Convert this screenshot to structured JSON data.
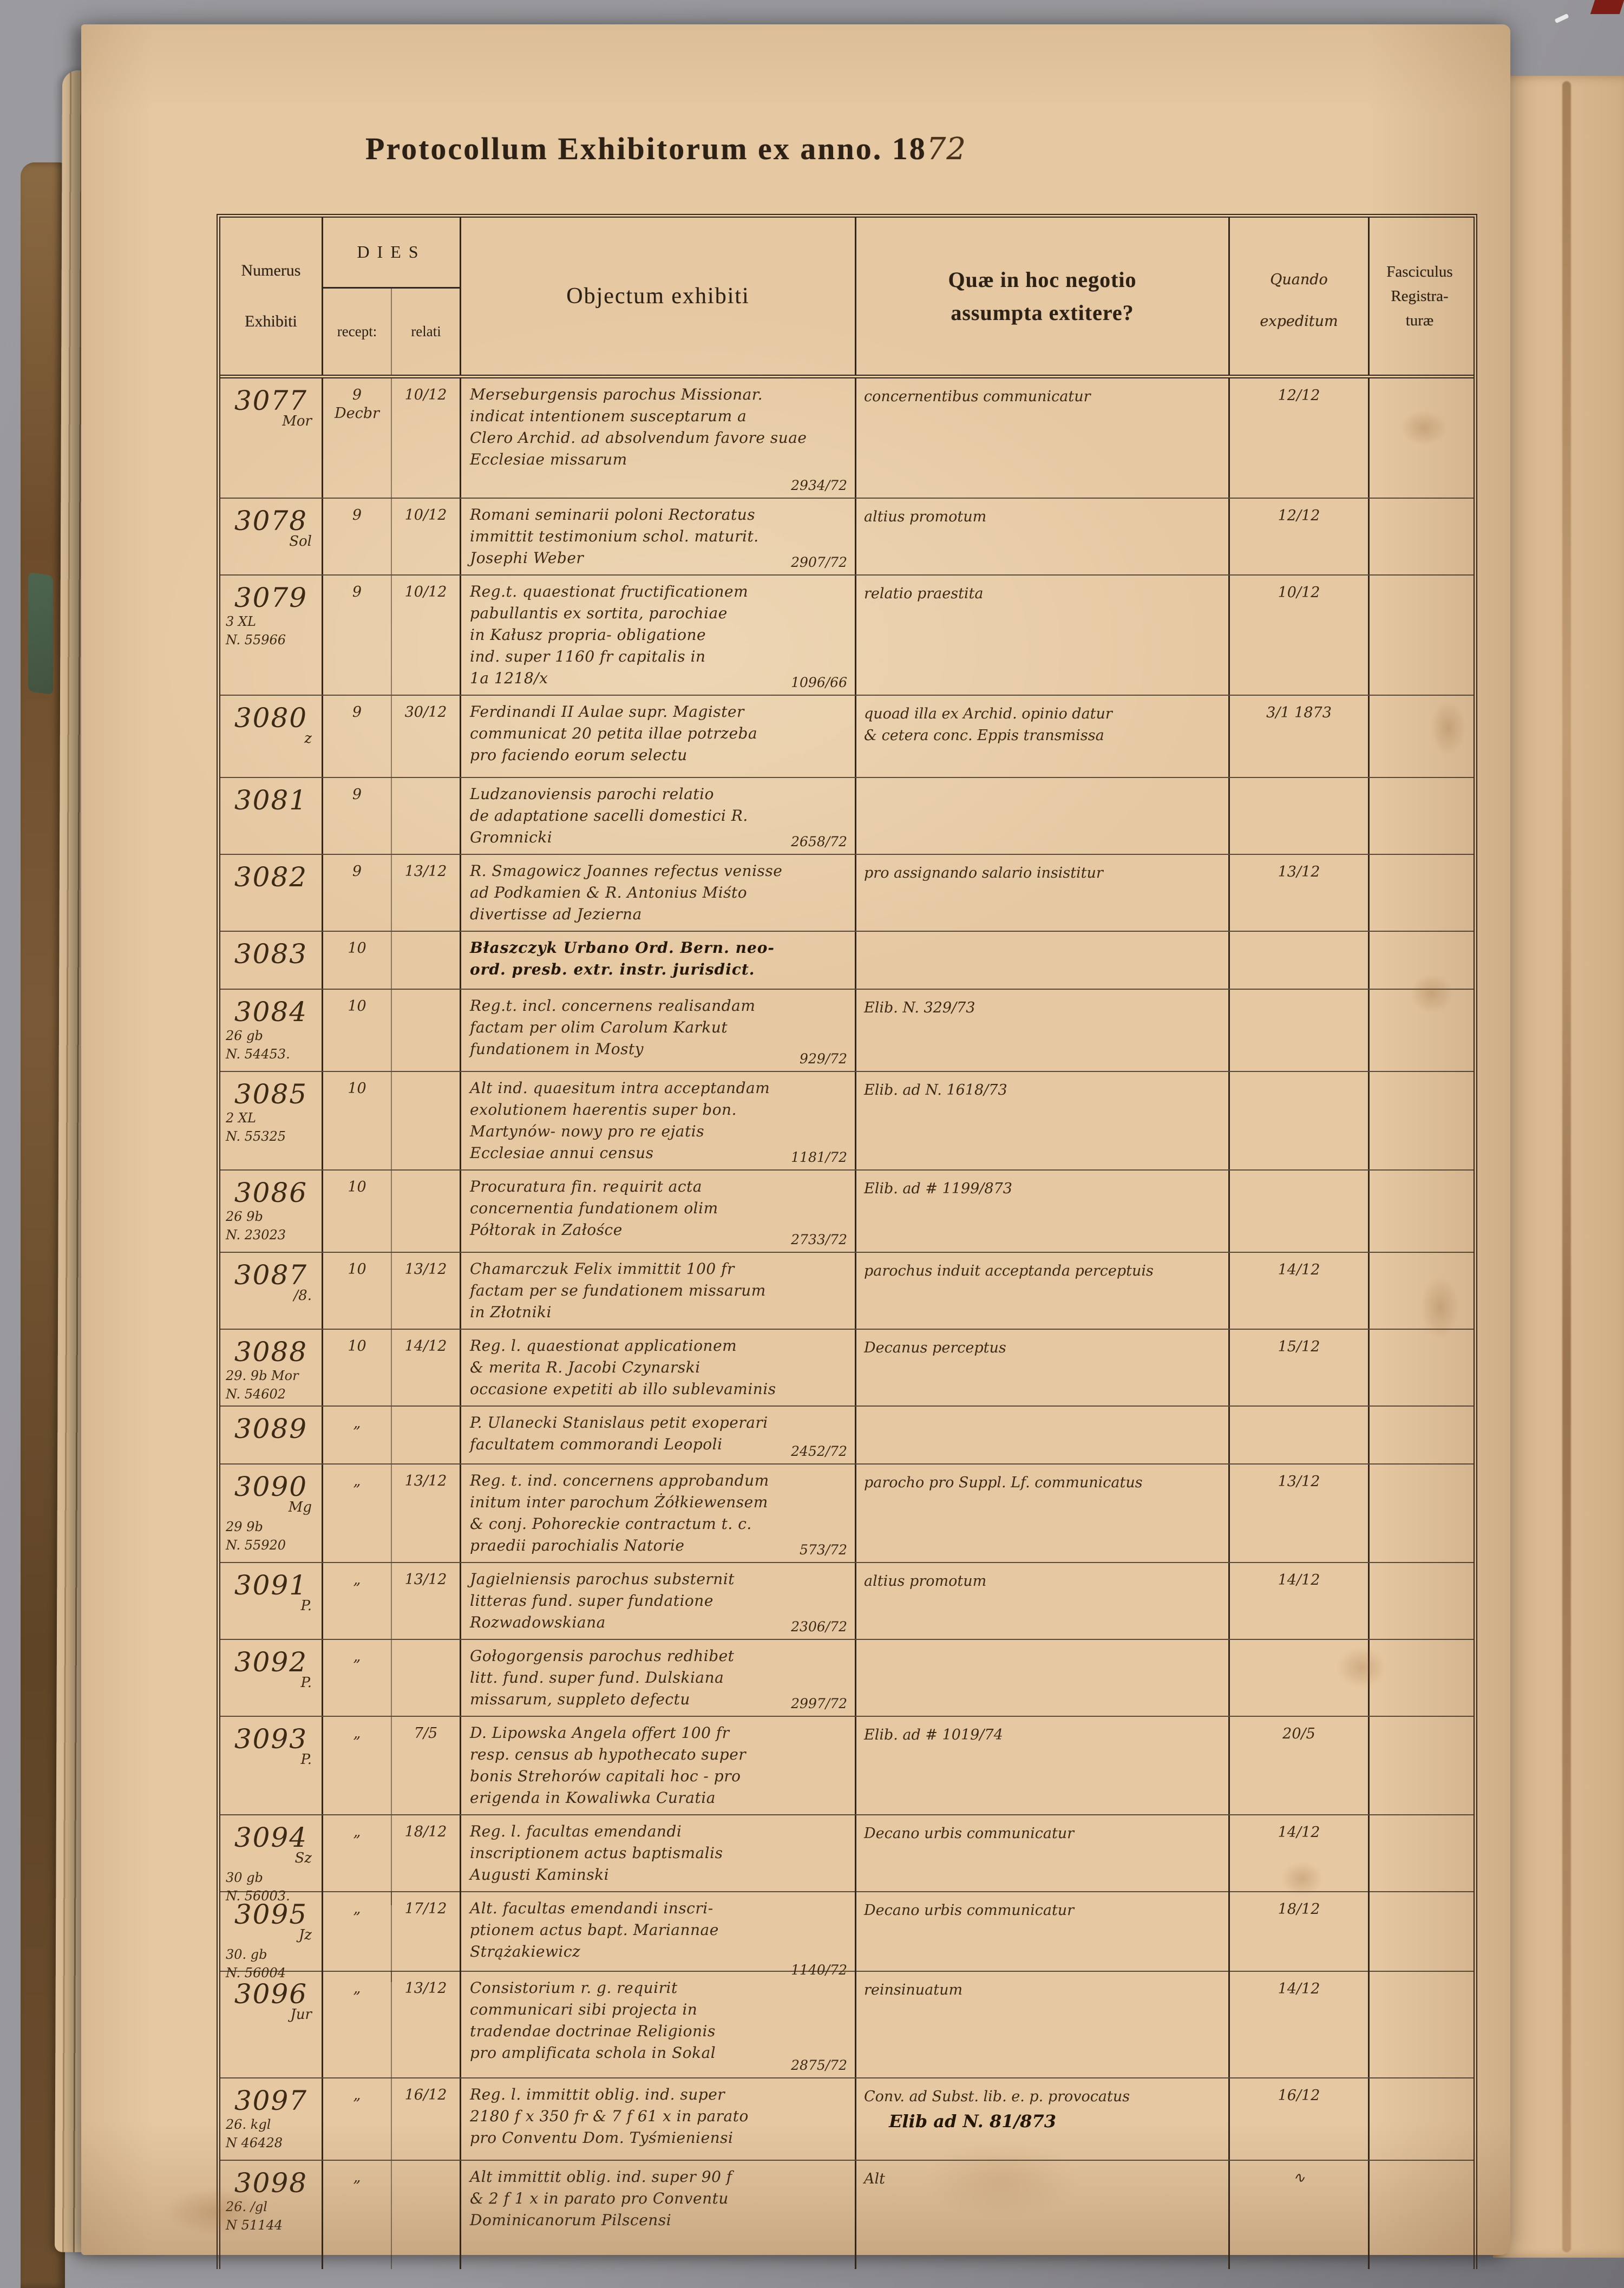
{
  "page": {
    "title_printed": "Protocollum Exhibitorum ex anno. 18",
    "title_hand": "72"
  },
  "table": {
    "headers": {
      "numerus_line1": "Numerus",
      "numerus_line2": "Exhibiti",
      "dies": "DIES",
      "recept": "recept:",
      "relati": "relati",
      "objectum": "Objectum exhibiti",
      "quae_line1": "Quæ in hoc negotio",
      "quae_line2": "assumpta extitere?",
      "quando_line1": "Quando",
      "quando_line2": "expeditum",
      "fasc_line1": "Fasciculus",
      "fasc_line2": "Registra-",
      "fasc_line3": "turæ"
    },
    "rows": [
      {
        "num": "3077",
        "side": "Mor",
        "sub": [],
        "recept": [
          "9",
          "Decbr"
        ],
        "relati": "10/12",
        "obj": [
          "Merseburgensis parochus Missionar.",
          "indicat intentionem susceptarum a",
          "Clero Archid. ad absolvendum favore suae",
          "Ecclesiae missarum"
        ],
        "ref": "2934/72",
        "quae": [
          "concernentibus communicatur"
        ],
        "quae2": "",
        "quando": "12/12",
        "bold": false
      },
      {
        "num": "3078",
        "side": "Sol",
        "sub": [],
        "recept": [
          "9"
        ],
        "relati": "10/12",
        "obj": [
          "Romani seminarii poloni Rectoratus",
          "immittit testimonium schol. maturit.",
          "Josephi Weber"
        ],
        "ref": "2907/72",
        "quae": [
          "altius promotum"
        ],
        "quae2": "",
        "quando": "12/12",
        "bold": false
      },
      {
        "num": "3079",
        "side": "",
        "sub": [
          "3 XL",
          "N. 55966"
        ],
        "recept": [
          "9"
        ],
        "relati": "10/12",
        "obj": [
          "Reg.t. quaestionat fructificationem",
          "pabullantis ex sortita, parochiae",
          "in Kałusz propria- obligatione",
          "ind. super 1160 fr capitalis in",
          "1a 1218/x"
        ],
        "ref": "1096/66",
        "quae": [
          "relatio praestita"
        ],
        "quae2": "",
        "quando": "10/12",
        "bold": false
      },
      {
        "num": "3080",
        "side": "z",
        "sub": [],
        "recept": [
          "9"
        ],
        "relati": "30/12",
        "obj": [
          "Ferdinandi II Aulae supr. Magister",
          "communicat 20 petita illae potrzeba",
          "pro faciendo eorum selectu"
        ],
        "ref": "",
        "quae": [
          "quoad illa ex Archid. opinio datur",
          "& cetera conc. Eppis transmissa"
        ],
        "quae2": "",
        "quando": "3/1 1873",
        "bold": false
      },
      {
        "num": "3081",
        "side": "",
        "sub": [],
        "recept": [
          "9"
        ],
        "relati": "",
        "obj": [
          "Ludzanoviensis parochi relatio",
          "de adaptatione sacelli domestici R.",
          "Gromnicki"
        ],
        "ref": "2658/72",
        "quae": [],
        "quae2": "",
        "quando": "",
        "bold": false
      },
      {
        "num": "3082",
        "side": "",
        "sub": [],
        "recept": [
          "9"
        ],
        "relati": "13/12",
        "obj": [
          "R. Smagowicz Joannes refectus venisse",
          "ad Podkamien & R. Antonius Miśto",
          "divertisse ad Jezierna"
        ],
        "ref": "",
        "quae": [
          "pro assignando salario insistitur"
        ],
        "quae2": "",
        "quando": "13/12",
        "bold": false
      },
      {
        "num": "3083",
        "side": "",
        "sub": [],
        "recept": [
          "10"
        ],
        "relati": "",
        "obj": [
          "Błaszczyk Urbano Ord. Bern. neo-",
          "ord. presb. extr. instr. jurisdict."
        ],
        "ref": "",
        "quae": [],
        "quae2": "",
        "quando": "",
        "bold": true
      },
      {
        "num": "3084",
        "side": "",
        "sub": [
          "26 gb",
          "N. 54453."
        ],
        "recept": [
          "10"
        ],
        "relati": "",
        "obj": [
          "Reg.t. incl. concernens realisandam",
          "factam per olim Carolum Karkut",
          "fundationem in Mosty"
        ],
        "ref": "929/72",
        "quae": [
          "Elib. N. 329/73"
        ],
        "quae2": "",
        "quando": "",
        "bold": false
      },
      {
        "num": "3085",
        "side": "",
        "sub": [
          "2 XL",
          "N. 55325"
        ],
        "recept": [
          "10"
        ],
        "relati": "",
        "obj": [
          "Alt ind. quaesitum intra acceptandam",
          "exolutionem haerentis super bon.",
          "Martynów- nowy pro re ejatis",
          "Ecclesiae annui census"
        ],
        "ref": "1181/72",
        "quae": [
          "Elib. ad N. 1618/73"
        ],
        "quae2": "",
        "quando": "",
        "bold": false
      },
      {
        "num": "3086",
        "side": "",
        "sub": [
          "26 9b",
          "N. 23023"
        ],
        "recept": [
          "10"
        ],
        "relati": "",
        "obj": [
          "Procuratura fin. requirit acta",
          "concernentia fundationem olim",
          "Półtorak in Załośce"
        ],
        "ref": "2733/72",
        "quae": [
          "Elib. ad # 1199/873"
        ],
        "quae2": "",
        "quando": "",
        "bold": false
      },
      {
        "num": "3087",
        "side": "/8.",
        "sub": [],
        "recept": [
          "10"
        ],
        "relati": "13/12",
        "obj": [
          "Chamarczuk Felix immittit 100 fr",
          "factam per se fundationem missarum",
          "in Złotniki"
        ],
        "ref": "",
        "quae": [
          "parochus induit acceptanda perceptuis"
        ],
        "quae2": "",
        "quando": "14/12",
        "bold": false
      },
      {
        "num": "3088",
        "side": "",
        "sub": [
          "29. 9b Mor",
          "N. 54602"
        ],
        "recept": [
          "10"
        ],
        "relati": "14/12",
        "obj": [
          "Reg. l. quaestionat applicationem",
          "& merita R. Jacobi Czynarski",
          "occasione expetiti ab illo sublevaminis"
        ],
        "ref": "",
        "quae": [
          "Decanus perceptus"
        ],
        "quae2": "",
        "quando": "15/12",
        "bold": false
      },
      {
        "num": "3089",
        "side": "",
        "sub": [],
        "recept": [
          "„"
        ],
        "relati": "",
        "obj": [
          "P. Ulanecki Stanislaus petit exoperari",
          "facultatem commorandi Leopoli"
        ],
        "ref": "2452/72",
        "quae": [],
        "quae2": "",
        "quando": "",
        "bold": false
      },
      {
        "num": "3090",
        "side": "Mg",
        "sub": [
          "29 9b",
          "N. 55920"
        ],
        "recept": [
          "„"
        ],
        "relati": "13/12",
        "obj": [
          "Reg. t. ind. concernens approbandum",
          "initum inter parochum Żółkiewensem",
          "& conj. Pohoreckie contractum t. c.",
          "praedii parochialis Natorie"
        ],
        "ref": "573/72",
        "quae": [
          "parocho pro Suppl. Lf. communicatus"
        ],
        "quae2": "",
        "quando": "13/12",
        "bold": false
      },
      {
        "num": "3091",
        "side": "P.",
        "sub": [],
        "recept": [
          "„"
        ],
        "relati": "13/12",
        "obj": [
          "Jagielniensis parochus substernit",
          "litteras fund. super fundatione",
          "Rozwadowskiana"
        ],
        "ref": "2306/72",
        "quae": [
          "altius promotum"
        ],
        "quae2": "",
        "quando": "14/12",
        "bold": false
      },
      {
        "num": "3092",
        "side": "P.",
        "sub": [],
        "recept": [
          "„"
        ],
        "relati": "",
        "obj": [
          "Gołogorgensis parochus redhibet",
          "litt. fund. super fund. Dulskiana",
          "missarum, suppleto defectu"
        ],
        "ref": "2997/72",
        "quae": [],
        "quae2": "",
        "quando": "",
        "bold": false
      },
      {
        "num": "3093",
        "side": "P.",
        "sub": [],
        "recept": [
          "„"
        ],
        "relati": "7/5",
        "obj": [
          "D. Lipowska Angela offert 100 fr",
          "resp. census ab hypothecato super",
          "bonis Strehorów capitali hoc - pro",
          "erigenda in Kowaliwka Curatia"
        ],
        "ref": "",
        "quae": [
          "Elib. ad # 1019/74"
        ],
        "quae2": "",
        "quando": "20/5",
        "bold": false
      },
      {
        "num": "3094",
        "side": "Sz",
        "sub": [
          "30 gb",
          "N. 56003."
        ],
        "recept": [
          "„"
        ],
        "relati": "18/12",
        "obj": [
          "Reg. l. facultas emendandi",
          "inscriptionem actus baptismalis",
          "Augusti Kaminski"
        ],
        "ref": "",
        "quae": [
          "Decano urbis communicatur"
        ],
        "quae2": "",
        "quando": "14/12",
        "bold": false
      },
      {
        "num": "3095",
        "side": "Jz",
        "sub": [
          "30. gb",
          "N. 56004"
        ],
        "recept": [
          "„"
        ],
        "relati": "17/12",
        "obj": [
          "Alt. facultas emendandi inscri-",
          "ptionem actus bapt. Mariannae",
          "Strążakiewicz"
        ],
        "ref": "1140/72",
        "quae": [
          "Decano urbis communicatur"
        ],
        "quae2": "",
        "quando": "18/12",
        "bold": false
      },
      {
        "num": "3096",
        "side": "Jur",
        "sub": [],
        "recept": [
          "„"
        ],
        "relati": "13/12",
        "obj": [
          "Consistorium r. g. requirit",
          "communicari sibi projecta in",
          "tradendae doctrinae Religionis",
          "pro amplificata schola in Sokal"
        ],
        "ref": "2875/72",
        "quae": [
          "reinsinuatum"
        ],
        "quae2": "",
        "quando": "14/12",
        "bold": false
      },
      {
        "num": "3097",
        "side": "",
        "sub": [
          "26. kgl",
          "N 46428"
        ],
        "recept": [
          "„"
        ],
        "relati": "16/12",
        "obj": [
          "Reg. l. immittit oblig. ind. super",
          "2180 f x 350 fr & 7 f 61 x in parato",
          "pro Conventu Dom. Tyśmieniensi"
        ],
        "ref": "",
        "quae": [
          "Conv. ad Subst. lib. e. p. provocatus"
        ],
        "quae2": "Elib ad N. 81/873",
        "quando": "16/12",
        "bold": false
      },
      {
        "num": "3098",
        "side": "",
        "sub": [
          "26. /gl",
          "N 51144"
        ],
        "recept": [
          "„"
        ],
        "relati": "",
        "obj": [
          "Alt immittit oblig. ind. super 90 f",
          "& 2 f 1 x in parato pro Conventu",
          "Dominicanorum Pilscensi"
        ],
        "ref": "",
        "quae": [
          "Alt"
        ],
        "quae2": "",
        "quando": "∿",
        "bold": false
      }
    ]
  }
}
